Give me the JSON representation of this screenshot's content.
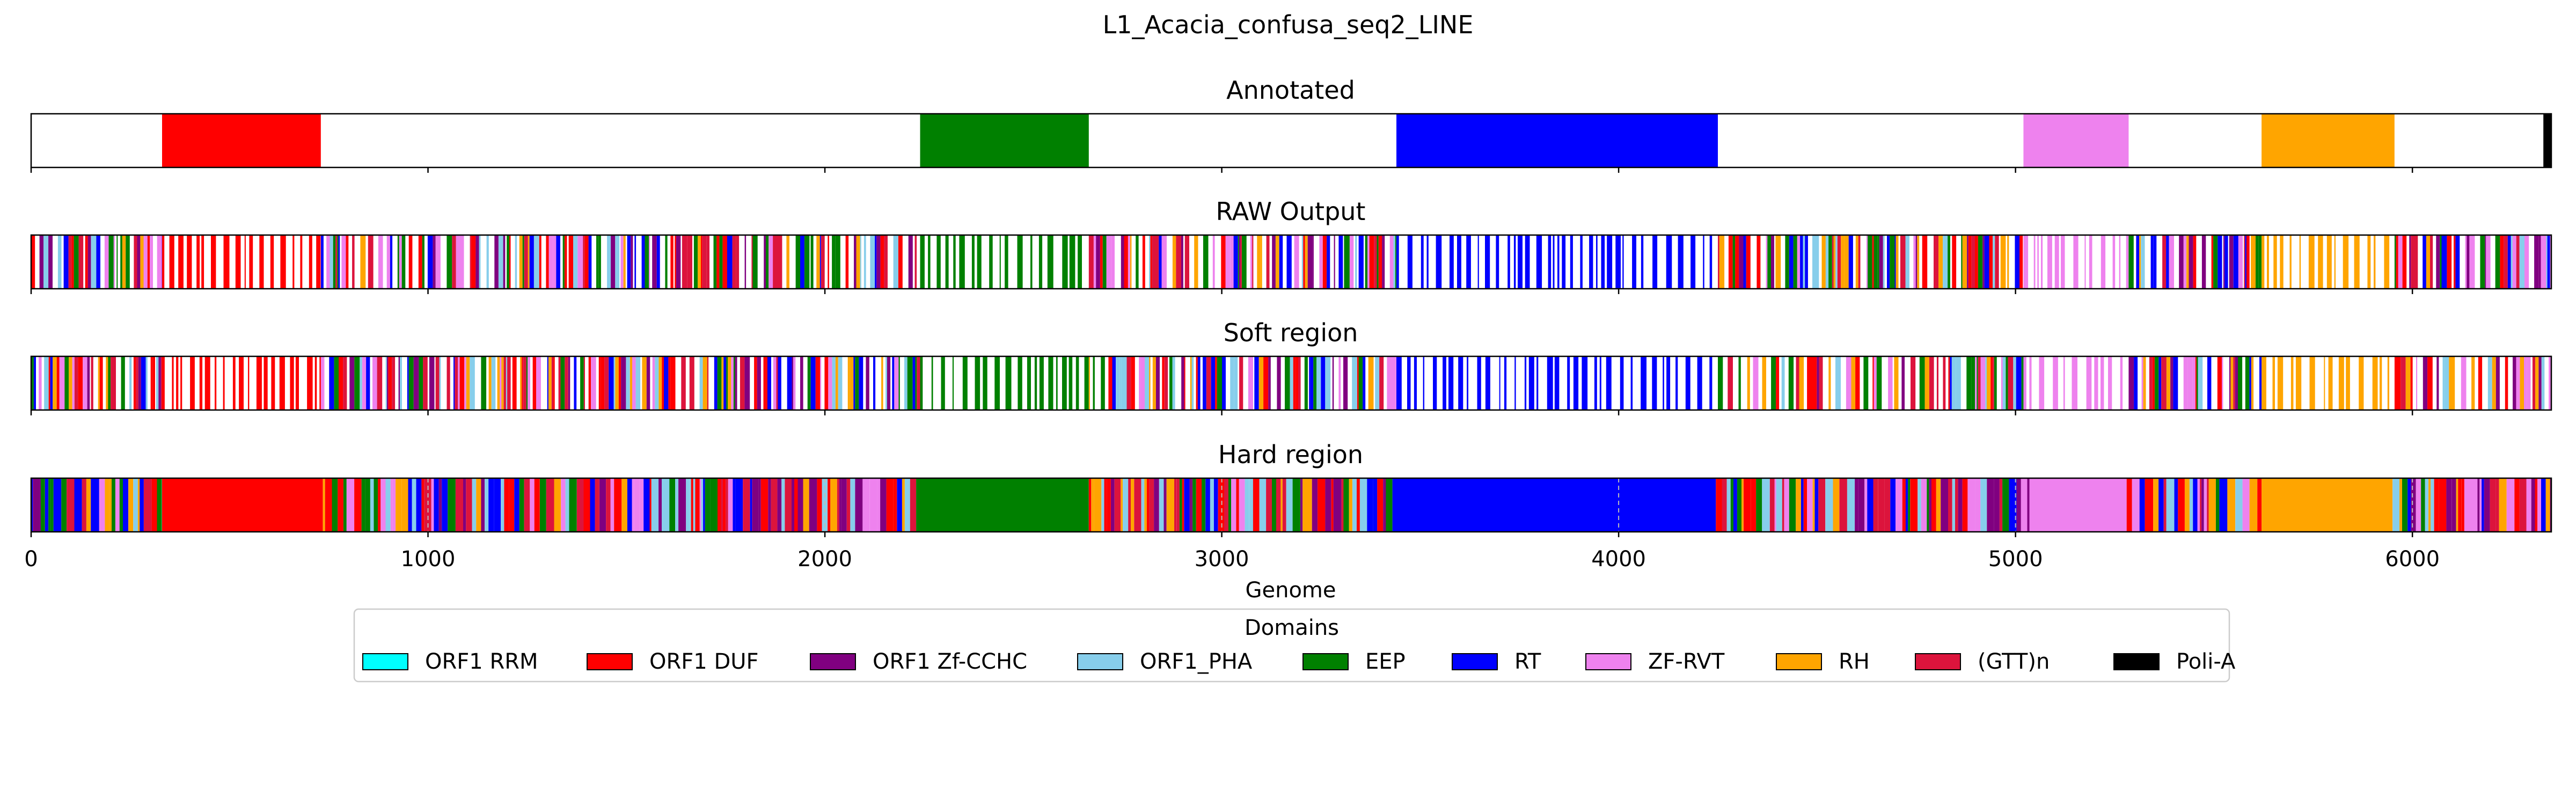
{
  "figure_title": "L1_Acacia_confusa_seq2_LINE",
  "chart_data": {
    "type": "genome-track",
    "xlabel": "Genome",
    "xlim": [
      0,
      6350
    ],
    "xticks": [
      0,
      1000,
      2000,
      3000,
      4000,
      5000,
      6000
    ],
    "xtick_labels": [
      "0",
      "1000",
      "2000",
      "3000",
      "4000",
      "5000",
      "6000"
    ],
    "legend_title": "Domains",
    "legend_placement": "below",
    "domains": [
      {
        "name": "ORF1 RRM",
        "color": "#00ffff"
      },
      {
        "name": "ORF1 DUF",
        "color": "#ff0000"
      },
      {
        "name": "ORF1 Zf-CCHC",
        "color": "#800080"
      },
      {
        "name": "ORF1_PHA",
        "color": "#87ceeb"
      },
      {
        "name": "EEP",
        "color": "#008000"
      },
      {
        "name": "RT",
        "color": "#0000ff"
      },
      {
        "name": "ZF-RVT",
        "color": "#ee82ee"
      },
      {
        "name": "RH",
        "color": "#ffa500"
      },
      {
        "name": "(GTT)n",
        "color": "#dc143c"
      },
      {
        "name": "Poli-A",
        "color": "#000000"
      }
    ],
    "tracks": [
      {
        "title": "Annotated",
        "segments": [
          {
            "start": 330,
            "end": 730,
            "domain": "ORF1 DUF"
          },
          {
            "start": 2240,
            "end": 2665,
            "domain": "EEP"
          },
          {
            "start": 3440,
            "end": 4250,
            "domain": "RT"
          },
          {
            "start": 5020,
            "end": 5285,
            "domain": "ZF-RVT"
          },
          {
            "start": 5620,
            "end": 5955,
            "domain": "RH"
          },
          {
            "start": 6330,
            "end": 6350,
            "domain": "Poli-A"
          }
        ]
      },
      {
        "title": "RAW Output",
        "segments": [
          {
            "start": 0,
            "end": 330,
            "domain": "mixed"
          },
          {
            "start": 330,
            "end": 730,
            "domain": "ORF1 DUF",
            "sparse": true
          },
          {
            "start": 730,
            "end": 2240,
            "domain": "mixed"
          },
          {
            "start": 2240,
            "end": 2665,
            "domain": "EEP",
            "sparse": true
          },
          {
            "start": 2665,
            "end": 3440,
            "domain": "mixed"
          },
          {
            "start": 3440,
            "end": 4250,
            "domain": "RT",
            "sparse": true
          },
          {
            "start": 4250,
            "end": 5020,
            "domain": "mixed"
          },
          {
            "start": 5020,
            "end": 5285,
            "domain": "ZF-RVT",
            "sparse": true
          },
          {
            "start": 5285,
            "end": 5620,
            "domain": "mixed"
          },
          {
            "start": 5620,
            "end": 5955,
            "domain": "RH",
            "sparse": true
          },
          {
            "start": 5955,
            "end": 6350,
            "domain": "mixed"
          }
        ]
      },
      {
        "title": "Soft region",
        "segments": [
          {
            "start": 0,
            "end": 330,
            "domain": "mixed"
          },
          {
            "start": 330,
            "end": 730,
            "domain": "ORF1 DUF",
            "sparse": true
          },
          {
            "start": 730,
            "end": 2240,
            "domain": "mixed"
          },
          {
            "start": 2240,
            "end": 2665,
            "domain": "EEP",
            "sparse": true
          },
          {
            "start": 2665,
            "end": 3440,
            "domain": "mixed"
          },
          {
            "start": 3440,
            "end": 4250,
            "domain": "RT",
            "sparse": true
          },
          {
            "start": 4250,
            "end": 5020,
            "domain": "mixed"
          },
          {
            "start": 5020,
            "end": 5285,
            "domain": "ZF-RVT",
            "sparse": true
          },
          {
            "start": 5285,
            "end": 5620,
            "domain": "mixed"
          },
          {
            "start": 5620,
            "end": 5955,
            "domain": "RH",
            "sparse": true
          },
          {
            "start": 5955,
            "end": 6350,
            "domain": "mixed"
          }
        ]
      },
      {
        "title": "Hard region",
        "segments": [
          {
            "start": 0,
            "end": 330,
            "domain": "mixed"
          },
          {
            "start": 330,
            "end": 735,
            "domain": "ORF1 DUF"
          },
          {
            "start": 735,
            "end": 2230,
            "domain": "mixed"
          },
          {
            "start": 2230,
            "end": 2665,
            "domain": "EEP"
          },
          {
            "start": 2665,
            "end": 3430,
            "domain": "mixed"
          },
          {
            "start": 3430,
            "end": 4245,
            "domain": "RT"
          },
          {
            "start": 4245,
            "end": 5035,
            "domain": "mixed"
          },
          {
            "start": 5035,
            "end": 5280,
            "domain": "ZF-RVT"
          },
          {
            "start": 5280,
            "end": 5620,
            "domain": "mixed"
          },
          {
            "start": 5620,
            "end": 5950,
            "domain": "RH"
          },
          {
            "start": 5950,
            "end": 6350,
            "domain": "mixed"
          }
        ]
      }
    ]
  }
}
